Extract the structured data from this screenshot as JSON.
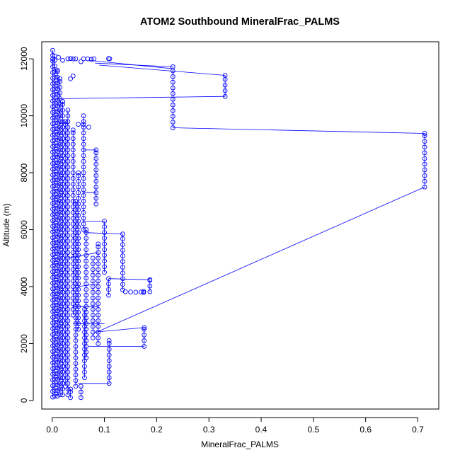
{
  "chart_data": {
    "type": "scatter",
    "title": "ATOM2 Southbound MineralFrac_PALMS",
    "xlabel": "MineralFrac_PALMS",
    "ylabel": "Altitude (m)",
    "xlim": [
      -0.02,
      0.74
    ],
    "ylim": [
      -300,
      12600
    ],
    "xticks": [
      0.0,
      0.1,
      0.2,
      0.3,
      0.4,
      0.5,
      0.6,
      0.7
    ],
    "xtick_labels": [
      "0.0",
      "0.1",
      "0.2",
      "0.3",
      "0.4",
      "0.5",
      "0.6",
      "0.7"
    ],
    "yticks": [
      0,
      2000,
      4000,
      6000,
      8000,
      10000,
      12000
    ],
    "ytick_labels": [
      "0",
      "2000",
      "4000",
      "6000",
      "8000",
      "10000",
      "12000"
    ],
    "series_color": "#0000ff",
    "marker": "open-circle",
    "connect_points": true,
    "columns": [
      {
        "x": 0.713,
        "y0": 7500,
        "y1": 9380
      },
      {
        "x": 0.331,
        "y0": 10680,
        "y1": 11420
      },
      {
        "x": 0.231,
        "y0": 9580,
        "y1": 11720
      },
      {
        "x": 0.187,
        "y0": 3820,
        "y1": 4240
      },
      {
        "x": 0.175,
        "y0": 3790,
        "y1": 3830
      },
      {
        "x": 0.176,
        "y0": 1900,
        "y1": 2560
      },
      {
        "x": 0.135,
        "y0": 3880,
        "y1": 5850
      },
      {
        "x": 0.108,
        "y0": 3700,
        "y1": 4280
      },
      {
        "x": 0.109,
        "y0": 600,
        "y1": 2100
      },
      {
        "x": 0.1,
        "y0": 4500,
        "y1": 6300
      },
      {
        "x": 0.088,
        "y0": 2000,
        "y1": 5500
      },
      {
        "x": 0.084,
        "y0": 6900,
        "y1": 8800
      },
      {
        "x": 0.078,
        "y0": 2200,
        "y1": 5000
      },
      {
        "x": 0.065,
        "y0": 1500,
        "y1": 6000
      },
      {
        "x": 0.06,
        "y0": 6000,
        "y1": 10000
      },
      {
        "x": 0.055,
        "y0": 100,
        "y1": 500
      },
      {
        "x": 0.035,
        "y0": 100,
        "y1": 400
      },
      {
        "x": 0.062,
        "y0": 800,
        "y1": 3200
      },
      {
        "x": 0.05,
        "y0": 2500,
        "y1": 8000
      },
      {
        "x": 0.045,
        "y0": 500,
        "y1": 7000
      },
      {
        "x": 0.04,
        "y0": 3000,
        "y1": 9500
      },
      {
        "x": 0.03,
        "y0": 200,
        "y1": 10200
      },
      {
        "x": 0.025,
        "y0": 500,
        "y1": 9800
      },
      {
        "x": 0.02,
        "y0": 200,
        "y1": 10500
      },
      {
        "x": 0.015,
        "y0": 200,
        "y1": 11300
      },
      {
        "x": 0.01,
        "y0": 150,
        "y1": 11600
      },
      {
        "x": 0.005,
        "y0": 150,
        "y1": 12100
      },
      {
        "x": 0.001,
        "y0": 120,
        "y1": 12300
      }
    ],
    "points": [
      {
        "x": 0.001,
        "y": 12000
      },
      {
        "x": 0.012,
        "y": 12050
      },
      {
        "x": 0.02,
        "y": 11950
      },
      {
        "x": 0.03,
        "y": 12000
      },
      {
        "x": 0.035,
        "y": 12010
      },
      {
        "x": 0.04,
        "y": 12000
      },
      {
        "x": 0.045,
        "y": 12000
      },
      {
        "x": 0.06,
        "y": 12000
      },
      {
        "x": 0.068,
        "y": 12000
      },
      {
        "x": 0.075,
        "y": 11980
      },
      {
        "x": 0.08,
        "y": 12000
      },
      {
        "x": 0.11,
        "y": 12000
      },
      {
        "x": 0.108,
        "y": 12010
      },
      {
        "x": 0.055,
        "y": 11900
      },
      {
        "x": 0.05,
        "y": 9700
      },
      {
        "x": 0.06,
        "y": 9700
      },
      {
        "x": 0.07,
        "y": 9600
      },
      {
        "x": 0.14,
        "y": 3820
      },
      {
        "x": 0.15,
        "y": 3810
      },
      {
        "x": 0.16,
        "y": 3800
      },
      {
        "x": 0.17,
        "y": 3810
      },
      {
        "x": 0.04,
        "y": 11400
      },
      {
        "x": 0.035,
        "y": 11300
      },
      {
        "x": 0.02,
        "y": 10500
      }
    ],
    "segments": [
      {
        "x1": 0.082,
        "y1": 11850,
        "x2": 0.231,
        "y2": 11720
      },
      {
        "x1": 0.09,
        "y1": 11780,
        "x2": 0.331,
        "y2": 11420
      },
      {
        "x1": 0.07,
        "y1": 11950,
        "x2": 0.231,
        "y2": 11650
      },
      {
        "x1": 0.01,
        "y1": 10600,
        "x2": 0.331,
        "y2": 10680
      },
      {
        "x1": 0.231,
        "y1": 9580,
        "x2": 0.713,
        "y2": 9380
      },
      {
        "x1": 0.713,
        "y1": 7500,
        "x2": 0.085,
        "y2": 2400
      },
      {
        "x1": 0.08,
        "y1": 2400,
        "x2": 0.176,
        "y2": 2560
      },
      {
        "x1": 0.07,
        "y1": 1900,
        "x2": 0.176,
        "y2": 1900
      },
      {
        "x1": 0.108,
        "y1": 4280,
        "x2": 0.187,
        "y2": 4240
      },
      {
        "x1": 0.06,
        "y1": 5900,
        "x2": 0.135,
        "y2": 5850
      },
      {
        "x1": 0.05,
        "y1": 600,
        "x2": 0.109,
        "y2": 600
      },
      {
        "x1": 0.06,
        "y1": 8800,
        "x2": 0.084,
        "y2": 8800
      },
      {
        "x1": 0.06,
        "y1": 7300,
        "x2": 0.084,
        "y2": 7300
      },
      {
        "x1": 0.06,
        "y1": 6300,
        "x2": 0.1,
        "y2": 6300
      },
      {
        "x1": 0.05,
        "y1": 4000,
        "x2": 0.088,
        "y2": 4100
      },
      {
        "x1": 0.04,
        "y1": 3300,
        "x2": 0.088,
        "y2": 3300
      },
      {
        "x1": 0.04,
        "y1": 2700,
        "x2": 0.1,
        "y2": 2700
      },
      {
        "x1": 0.03,
        "y1": 5000,
        "x2": 0.088,
        "y2": 5200
      }
    ]
  }
}
